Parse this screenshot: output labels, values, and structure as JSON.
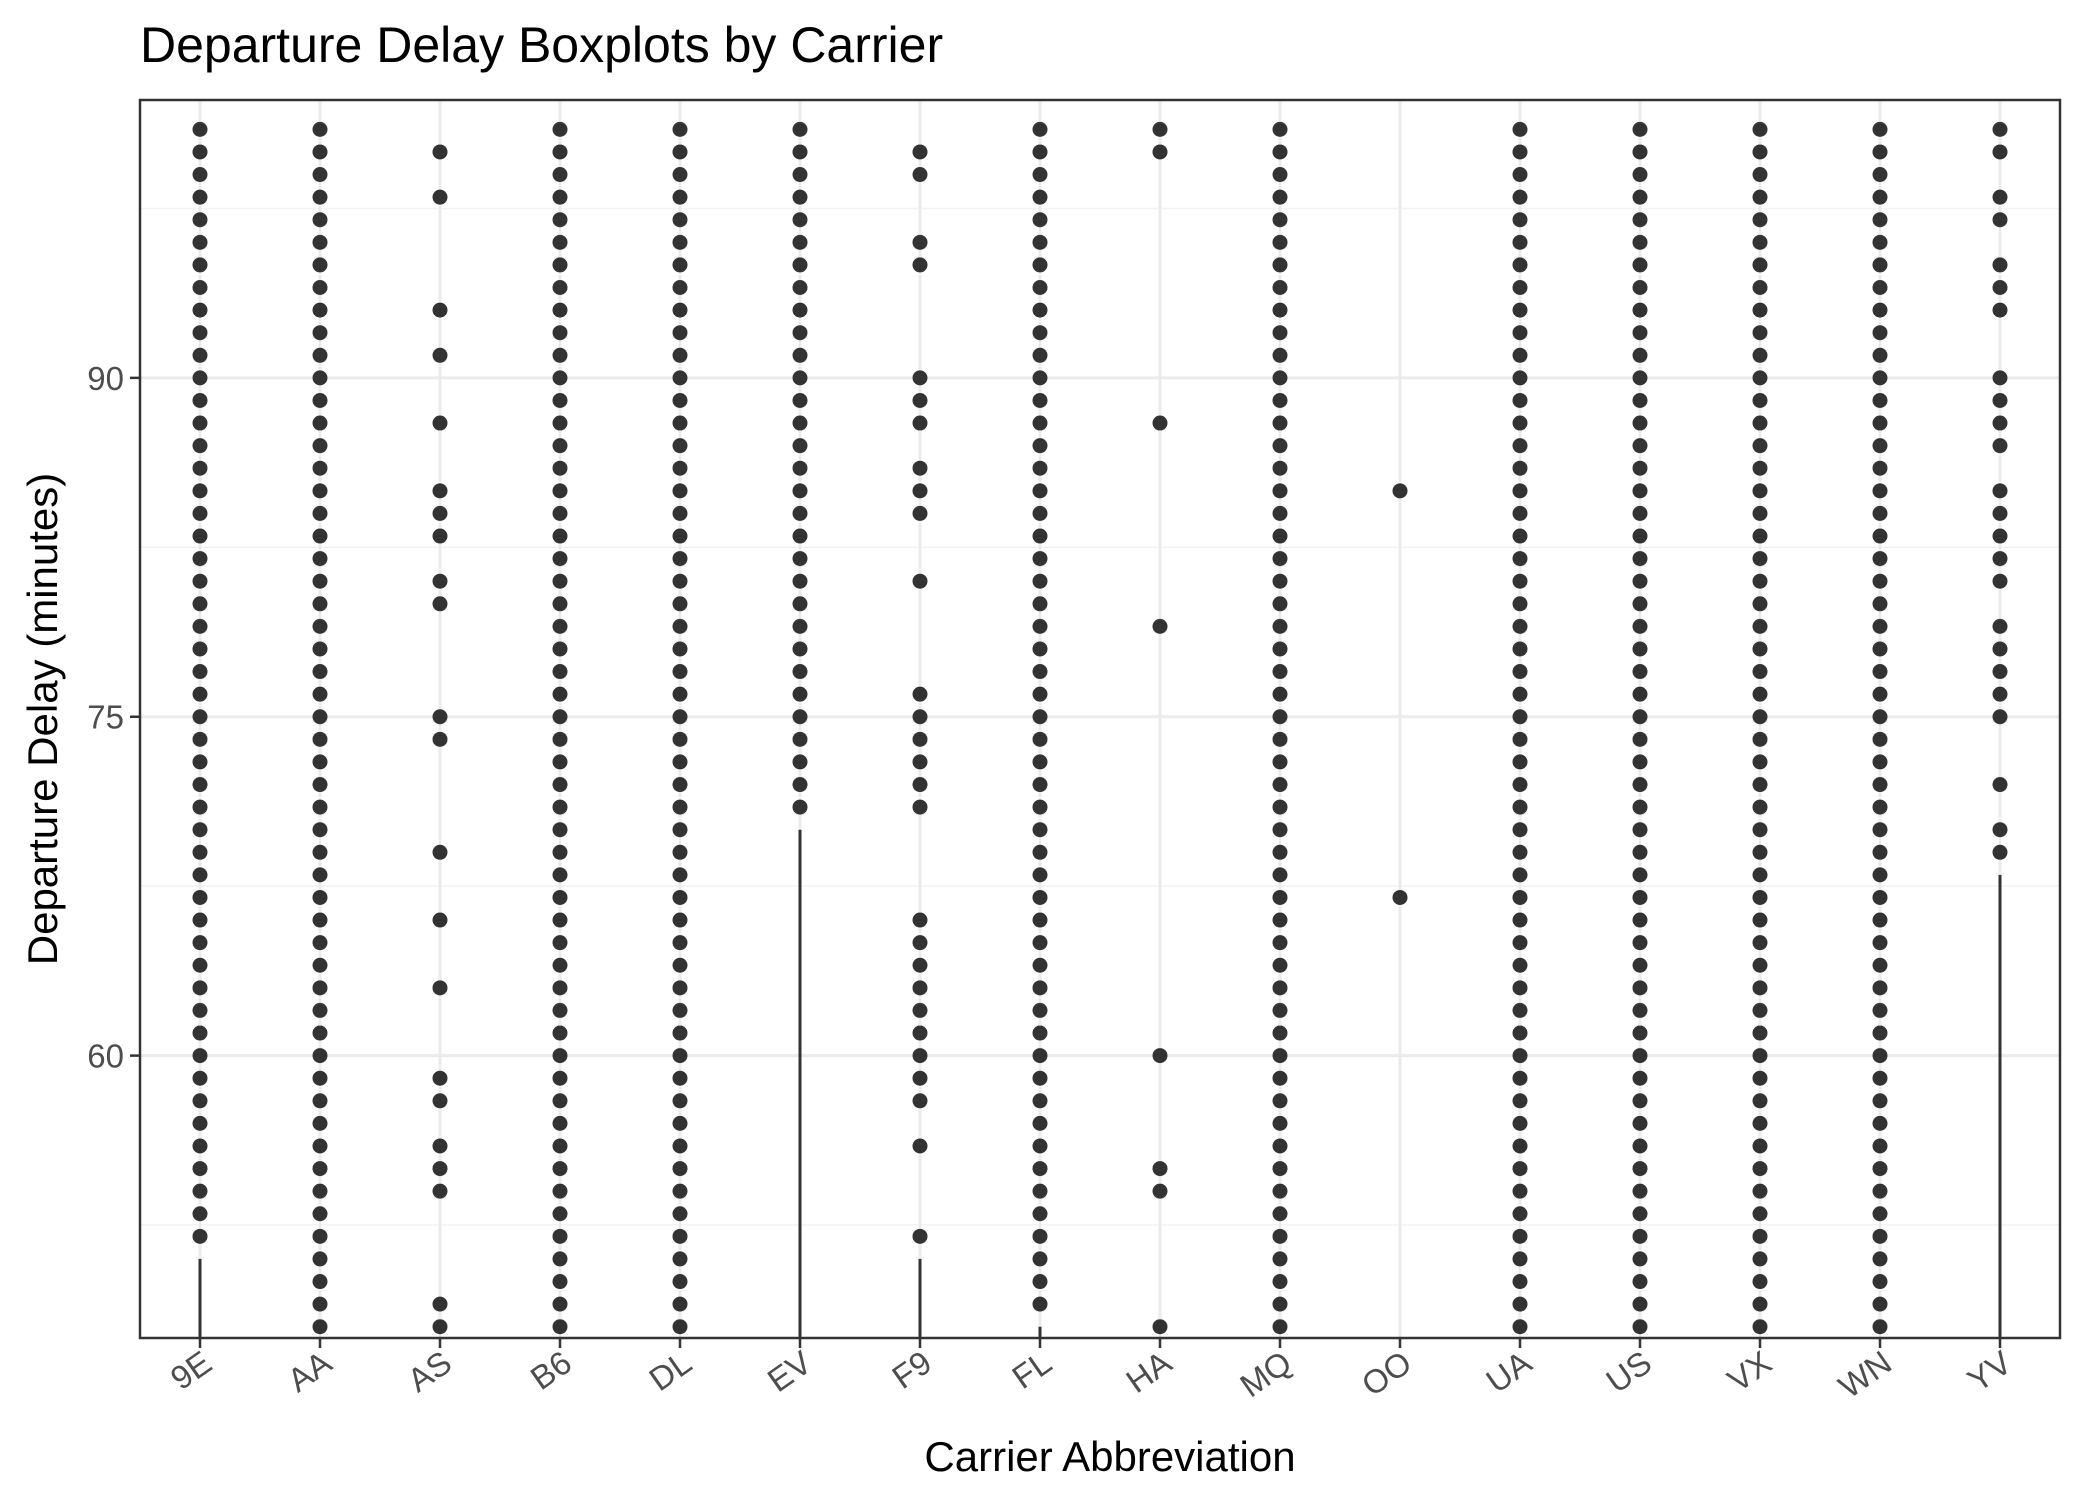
{
  "chart_data": {
    "type": "boxplot",
    "title": "Departure Delay Boxplots by Carrier",
    "xlabel": "Carrier Abbreviation",
    "ylabel": "Departure Delay (minutes)",
    "ylim": [
      47.5,
      102.3
    ],
    "y_ticks": [
      60,
      75,
      90
    ],
    "y_minor_ticks": [
      52.5,
      67.5,
      82.5,
      97.5
    ],
    "grid": true,
    "categories": [
      "9E",
      "AA",
      "AS",
      "B6",
      "DL",
      "EV",
      "F9",
      "FL",
      "HA",
      "MQ",
      "OO",
      "UA",
      "US",
      "VX",
      "WN",
      "YV"
    ],
    "series": [
      {
        "name": "9E",
        "whisker_top": 51,
        "outliers": {
          "range": [
            52,
            101
          ]
        }
      },
      {
        "name": "AA",
        "outliers": {
          "range": [
            48,
            101
          ]
        }
      },
      {
        "name": "AS",
        "outliers": {
          "values": [
            48,
            49,
            54,
            55,
            56,
            58,
            59,
            63,
            66,
            69,
            74,
            75,
            80,
            81,
            83,
            84,
            85,
            88,
            91,
            93,
            98,
            100
          ]
        }
      },
      {
        "name": "B6",
        "outliers": {
          "range": [
            48,
            101
          ]
        }
      },
      {
        "name": "DL",
        "outliers": {
          "range": [
            48,
            101
          ]
        }
      },
      {
        "name": "EV",
        "whisker_top": 70,
        "outliers": {
          "range": [
            71,
            101
          ]
        }
      },
      {
        "name": "F9",
        "whisker_top": 51,
        "outliers": {
          "values": [
            52,
            56,
            58,
            59,
            60,
            61,
            62,
            63,
            64,
            65,
            66,
            71,
            72,
            73,
            74,
            75,
            76,
            81,
            84,
            85,
            86,
            88,
            89,
            90,
            95,
            96,
            99,
            100
          ]
        }
      },
      {
        "name": "FL",
        "whisker_top": 48,
        "outliers": {
          "range": [
            49,
            101
          ]
        }
      },
      {
        "name": "HA",
        "outliers": {
          "values": [
            48,
            54,
            55,
            60,
            79,
            88,
            100,
            101
          ]
        }
      },
      {
        "name": "MQ",
        "outliers": {
          "range": [
            48,
            101
          ]
        }
      },
      {
        "name": "OO",
        "outliers": {
          "values": [
            67,
            85
          ]
        }
      },
      {
        "name": "UA",
        "outliers": {
          "range": [
            48,
            101
          ]
        }
      },
      {
        "name": "US",
        "outliers": {
          "range": [
            48,
            101
          ]
        }
      },
      {
        "name": "VX",
        "outliers": {
          "range": [
            48,
            101
          ]
        }
      },
      {
        "name": "WN",
        "outliers": {
          "range": [
            48,
            101
          ]
        }
      },
      {
        "name": "YV",
        "whisker_top": 68,
        "outliers": {
          "values": [
            69,
            70,
            72,
            75,
            76,
            77,
            78,
            79,
            81,
            82,
            83,
            84,
            85,
            87,
            88,
            89,
            90,
            93,
            94,
            95,
            97,
            98,
            100,
            101
          ]
        }
      }
    ]
  },
  "colors": {
    "points": "#333333",
    "grid": "#ebebeb",
    "panel_border": "#333333",
    "tick_text": "#4d4d4d"
  }
}
